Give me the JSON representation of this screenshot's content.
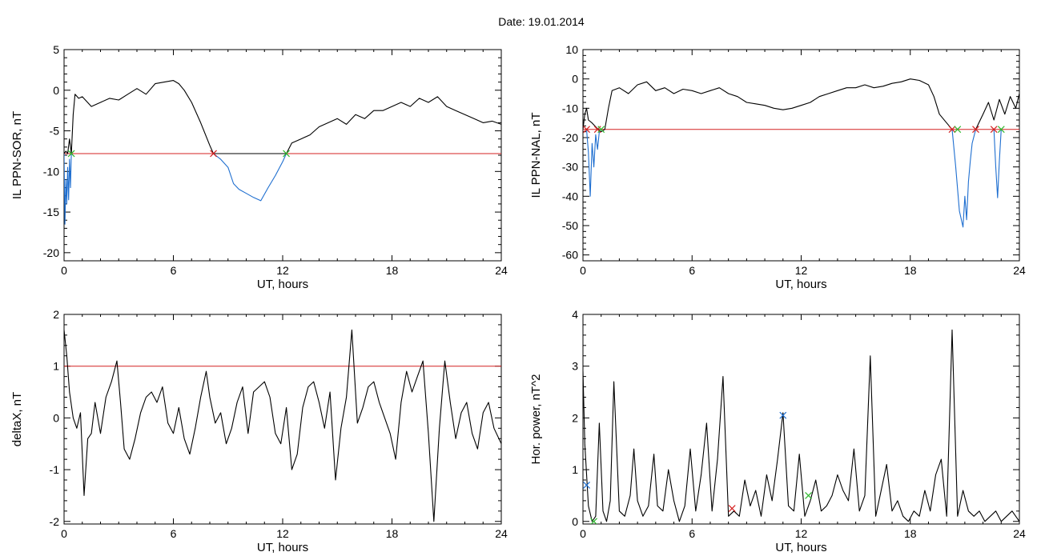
{
  "header": {
    "title": "Date:  19.01.2014"
  },
  "chart_data": [
    {
      "type": "line",
      "xlabel": "UT, hours",
      "ylabel": "IL PPN-SOR, nT",
      "xlim": [
        0,
        24
      ],
      "ylim": [
        -21,
        5
      ],
      "xticks": [
        0,
        6,
        12,
        18,
        24
      ],
      "yticks": [
        5,
        0,
        -5,
        -10,
        -15,
        -20
      ],
      "threshold": -7.8,
      "series": [
        {
          "color": "#000000",
          "x": [
            0,
            0.1,
            0.2,
            0.3,
            0.4,
            0.5,
            0.6,
            0.8,
            1.0,
            1.5,
            2.0,
            2.5,
            3.0,
            3.5,
            4.0,
            4.5,
            5.0,
            5.5,
            6.0,
            6.3,
            6.6,
            7.0,
            7.5,
            8.0,
            8.2,
            12.2,
            12.5,
            13.0,
            13.5,
            14.0,
            14.5,
            15.0,
            15.5,
            16.0,
            16.5,
            17.0,
            17.5,
            18.0,
            18.5,
            19.0,
            19.5,
            20.0,
            20.5,
            21.0,
            21.5,
            22.0,
            22.5,
            23.0,
            23.5,
            24.0
          ],
          "y": [
            -7.8,
            -7.5,
            -7.8,
            -6.0,
            -7.8,
            -3.0,
            -0.5,
            -1.0,
            -0.8,
            -2.0,
            -1.5,
            -1.0,
            -1.2,
            -0.5,
            0.2,
            -0.5,
            0.8,
            1.0,
            1.2,
            0.8,
            0.0,
            -1.5,
            -4.0,
            -6.8,
            -7.8,
            -7.8,
            -6.5,
            -6.0,
            -5.5,
            -4.5,
            -4.0,
            -3.5,
            -4.2,
            -3.0,
            -3.5,
            -2.5,
            -2.5,
            -2.0,
            -1.5,
            -2.0,
            -1.0,
            -1.5,
            -0.8,
            -2.0,
            -2.5,
            -3.0,
            -3.5,
            -4.0,
            -3.8,
            -4.2
          ]
        },
        {
          "color": "#1f6fd0",
          "x": [
            8.2,
            8.6,
            9.0,
            9.3,
            9.6,
            10.0,
            10.4,
            10.8,
            11.2,
            11.6,
            12.0,
            12.2
          ],
          "y": [
            -7.8,
            -8.5,
            -9.5,
            -11.5,
            -12.2,
            -12.7,
            -13.2,
            -13.6,
            -12.0,
            -10.5,
            -8.8,
            -7.8
          ]
        },
        {
          "color": "#1f6fd0",
          "x": [
            0.0,
            0.05,
            0.1,
            0.15,
            0.2,
            0.25,
            0.3,
            0.35,
            0.4
          ],
          "y": [
            -7.8,
            -16.5,
            -11.0,
            -14.0,
            -9.5,
            -13.5,
            -8.5,
            -12.0,
            -7.8
          ]
        }
      ],
      "markers": [
        {
          "x": 8.2,
          "y": -7.8,
          "color": "#d42020"
        },
        {
          "x": 12.2,
          "y": -7.8,
          "color": "#2db82d"
        },
        {
          "x": 0.4,
          "y": -7.8,
          "color": "#2db82d"
        }
      ]
    },
    {
      "type": "line",
      "xlabel": "UT, hours",
      "ylabel": "IL PPN-NAL, nT",
      "xlim": [
        0,
        24
      ],
      "ylim": [
        -62,
        10
      ],
      "xticks": [
        0,
        6,
        12,
        18,
        24
      ],
      "yticks": [
        10,
        0,
        -10,
        -20,
        -30,
        -40,
        -50,
        -60
      ],
      "threshold": -17.2,
      "series": [
        {
          "color": "#000000",
          "x": [
            0,
            0.1,
            0.2,
            0.3,
            0.5,
            0.8,
            1.0,
            1.2,
            1.4,
            1.6,
            2.0,
            2.5,
            3.0,
            3.5,
            4.0,
            4.5,
            5.0,
            5.5,
            6.0,
            6.5,
            7.0,
            7.5,
            8.0,
            8.5,
            9.0,
            9.5,
            10.0,
            10.5,
            11.0,
            11.5,
            12.0,
            12.5,
            13.0,
            13.5,
            14.0,
            14.5,
            15.0,
            15.5,
            16.0,
            16.5,
            17.0,
            17.5,
            18.0,
            18.5,
            19.0,
            19.3,
            19.6,
            20.0,
            20.3
          ],
          "y": [
            -17.2,
            -12.0,
            -10.0,
            -14.0,
            -15.0,
            -17.0,
            -18.0,
            -17.2,
            -10.0,
            -4.0,
            -3.0,
            -5.0,
            -2.0,
            -1.0,
            -4.0,
            -3.0,
            -5.0,
            -3.5,
            -4.0,
            -5.0,
            -4.0,
            -3.0,
            -5.0,
            -6.0,
            -8.0,
            -8.5,
            -9.0,
            -10.0,
            -10.5,
            -10.0,
            -9.0,
            -8.0,
            -6.0,
            -5.0,
            -4.0,
            -3.0,
            -3.0,
            -2.0,
            -3.0,
            -2.5,
            -1.5,
            -1.0,
            0.0,
            -0.5,
            -2.0,
            -6.0,
            -12.0,
            -15.0,
            -17.2
          ]
        },
        {
          "color": "#000000",
          "x": [
            21.6,
            22.0,
            22.3,
            22.6,
            22.9,
            23.2,
            23.5,
            23.8,
            24.0
          ],
          "y": [
            -17.2,
            -12.0,
            -8.0,
            -14.0,
            -7.0,
            -12.0,
            -6.0,
            -10.0,
            -5.0
          ]
        },
        {
          "color": "#1f6fd0",
          "x": [
            0.2,
            0.3,
            0.4,
            0.5,
            0.6,
            0.7,
            0.8,
            0.9,
            1.0
          ],
          "y": [
            -17.2,
            -25.0,
            -40.0,
            -22.0,
            -30.0,
            -19.0,
            -24.0,
            -18.0,
            -17.2
          ]
        },
        {
          "color": "#1f6fd0",
          "x": [
            20.3,
            20.5,
            20.7,
            20.9,
            21.0,
            21.1,
            21.2,
            21.3,
            21.4,
            21.6
          ],
          "y": [
            -17.2,
            -30.0,
            -45.0,
            -50.5,
            -40.0,
            -48.0,
            -35.0,
            -28.0,
            -22.0,
            -17.2
          ]
        },
        {
          "color": "#1f6fd0",
          "x": [
            22.6,
            22.7,
            22.8,
            22.9,
            23.0
          ],
          "y": [
            -17.2,
            -30.0,
            -40.5,
            -28.0,
            -17.2
          ]
        }
      ],
      "markers": [
        {
          "x": 0.2,
          "y": -17.2,
          "color": "#d42020"
        },
        {
          "x": 0.8,
          "y": -17.2,
          "color": "#d42020"
        },
        {
          "x": 1.0,
          "y": -17.2,
          "color": "#2db82d"
        },
        {
          "x": 20.3,
          "y": -17.2,
          "color": "#d42020"
        },
        {
          "x": 20.6,
          "y": -17.2,
          "color": "#2db82d"
        },
        {
          "x": 21.6,
          "y": -17.2,
          "color": "#d42020"
        },
        {
          "x": 22.6,
          "y": -17.2,
          "color": "#d42020"
        },
        {
          "x": 23.0,
          "y": -17.2,
          "color": "#2db82d"
        }
      ]
    },
    {
      "type": "line",
      "xlabel": "UT, hours",
      "ylabel": "deltaX, nT",
      "xlim": [
        0,
        24
      ],
      "ylim": [
        -2.05,
        2
      ],
      "xticks": [
        0,
        6,
        12,
        18,
        24
      ],
      "yticks": [
        2,
        1,
        0,
        -1,
        -2
      ],
      "threshold": 1.0,
      "series": [
        {
          "color": "#000000",
          "x": [
            0,
            0.15,
            0.3,
            0.5,
            0.7,
            0.9,
            1.1,
            1.3,
            1.5,
            1.7,
            2.0,
            2.3,
            2.6,
            2.9,
            3.1,
            3.3,
            3.6,
            3.9,
            4.2,
            4.5,
            4.8,
            5.1,
            5.4,
            5.7,
            6.0,
            6.3,
            6.6,
            6.9,
            7.2,
            7.5,
            7.8,
            8.0,
            8.3,
            8.6,
            8.9,
            9.2,
            9.5,
            9.8,
            10.1,
            10.4,
            10.7,
            11.0,
            11.3,
            11.6,
            11.9,
            12.2,
            12.5,
            12.8,
            13.1,
            13.4,
            13.7,
            14.0,
            14.3,
            14.6,
            14.9,
            15.2,
            15.5,
            15.8,
            16.1,
            16.4,
            16.7,
            17.0,
            17.3,
            17.6,
            17.9,
            18.2,
            18.5,
            18.8,
            19.1,
            19.4,
            19.7,
            20.0,
            20.3,
            20.6,
            20.9,
            21.2,
            21.5,
            21.8,
            22.1,
            22.4,
            22.7,
            23.0,
            23.3,
            23.6,
            24.0
          ],
          "y": [
            1.7,
            1.2,
            0.5,
            0.0,
            -0.2,
            0.1,
            -1.5,
            -0.4,
            -0.3,
            0.3,
            -0.3,
            0.4,
            0.7,
            1.1,
            0.3,
            -0.6,
            -0.8,
            -0.4,
            0.1,
            0.4,
            0.5,
            0.3,
            0.6,
            -0.1,
            -0.3,
            0.2,
            -0.4,
            -0.7,
            -0.2,
            0.4,
            0.9,
            0.4,
            -0.1,
            0.1,
            -0.5,
            -0.2,
            0.3,
            0.6,
            -0.3,
            0.5,
            0.6,
            0.7,
            0.4,
            -0.3,
            -0.5,
            0.2,
            -1.0,
            -0.7,
            0.2,
            0.6,
            0.7,
            0.3,
            -0.2,
            0.5,
            -1.2,
            -0.2,
            0.4,
            1.7,
            -0.1,
            0.2,
            0.6,
            0.7,
            0.3,
            0.0,
            -0.3,
            -0.8,
            0.3,
            0.9,
            0.5,
            0.8,
            1.1,
            -0.3,
            -2.0,
            -0.2,
            1.1,
            0.3,
            -0.4,
            0.1,
            0.3,
            -0.3,
            -0.6,
            0.1,
            0.3,
            -0.2,
            -0.5
          ]
        }
      ],
      "markers": []
    },
    {
      "type": "line",
      "xlabel": "UT, hours",
      "ylabel": "Hor. power, nT^2",
      "xlim": [
        0,
        24
      ],
      "ylim": [
        -0.05,
        4
      ],
      "xticks": [
        0,
        6,
        12,
        18,
        24
      ],
      "yticks": [
        4,
        3,
        2,
        1,
        0
      ],
      "threshold": null,
      "series": [
        {
          "color": "#000000",
          "x": [
            0,
            0.1,
            0.3,
            0.5,
            0.7,
            0.9,
            1.1,
            1.3,
            1.5,
            1.7,
            2.0,
            2.3,
            2.6,
            2.8,
            3.0,
            3.3,
            3.6,
            3.9,
            4.1,
            4.4,
            4.7,
            5.0,
            5.3,
            5.6,
            5.9,
            6.2,
            6.5,
            6.8,
            7.1,
            7.4,
            7.7,
            8.0,
            8.3,
            8.6,
            8.9,
            9.2,
            9.5,
            9.8,
            10.1,
            10.4,
            10.7,
            11.0,
            11.3,
            11.6,
            11.9,
            12.2,
            12.5,
            12.8,
            13.1,
            13.4,
            13.7,
            14.0,
            14.3,
            14.6,
            14.9,
            15.2,
            15.5,
            15.8,
            16.1,
            16.4,
            16.7,
            17.0,
            17.3,
            17.6,
            17.9,
            18.2,
            18.5,
            18.8,
            19.1,
            19.4,
            19.7,
            20.0,
            20.3,
            20.6,
            20.9,
            21.2,
            21.5,
            21.8,
            22.1,
            22.4,
            22.7,
            23.0,
            23.3,
            23.6,
            24.0
          ],
          "y": [
            2.9,
            1.5,
            0.3,
            0.0,
            0.1,
            1.9,
            0.2,
            0.0,
            0.4,
            2.7,
            0.2,
            0.1,
            0.5,
            1.4,
            0.4,
            0.1,
            0.3,
            1.3,
            0.3,
            0.2,
            1.0,
            0.4,
            0.0,
            0.3,
            1.4,
            0.2,
            0.9,
            1.9,
            0.2,
            1.2,
            2.8,
            0.1,
            0.2,
            0.1,
            0.8,
            0.3,
            0.6,
            0.1,
            0.9,
            0.4,
            1.2,
            2.1,
            0.3,
            0.2,
            1.3,
            0.1,
            0.4,
            0.8,
            0.2,
            0.3,
            0.5,
            0.9,
            0.6,
            0.4,
            1.4,
            0.2,
            0.5,
            3.2,
            0.1,
            0.6,
            1.1,
            0.2,
            0.4,
            0.1,
            0.0,
            0.2,
            0.1,
            0.6,
            0.2,
            0.9,
            1.2,
            0.1,
            3.7,
            0.1,
            0.6,
            0.2,
            0.1,
            0.2,
            0.0,
            0.1,
            0.2,
            0.0,
            0.1,
            0.2,
            0.0
          ]
        }
      ],
      "markers": [
        {
          "x": 0.2,
          "y": 0.7,
          "color": "#1f6fd0"
        },
        {
          "x": 0.6,
          "y": 0.0,
          "color": "#2db82d"
        },
        {
          "x": 8.2,
          "y": 0.25,
          "color": "#d42020"
        },
        {
          "x": 11.0,
          "y": 2.05,
          "color": "#1f6fd0"
        },
        {
          "x": 12.4,
          "y": 0.5,
          "color": "#2db82d"
        }
      ]
    }
  ]
}
